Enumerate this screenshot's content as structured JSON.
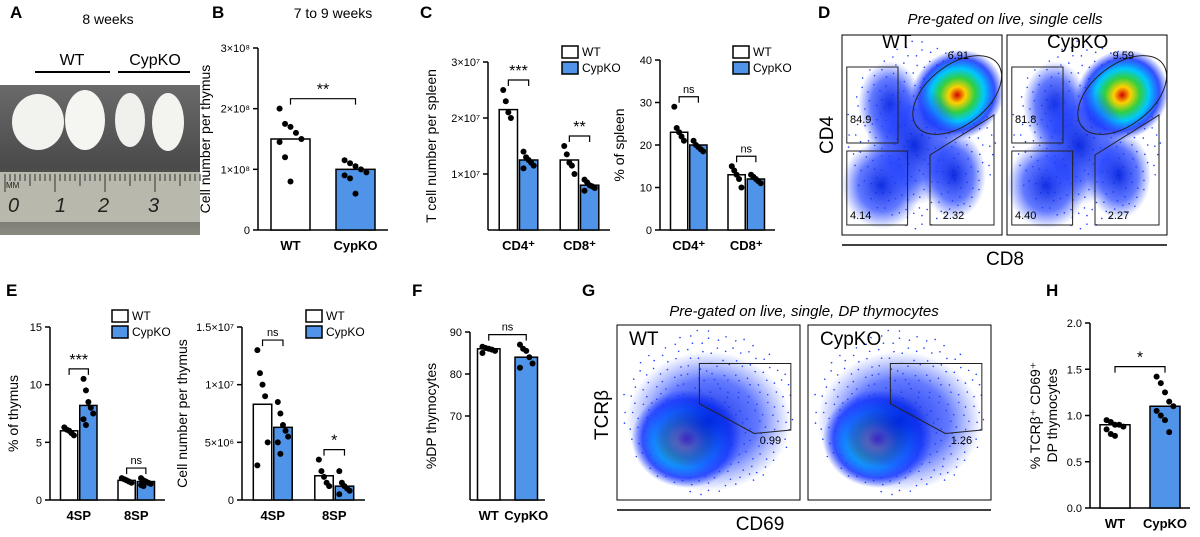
{
  "panel_letters": [
    "A",
    "B",
    "C",
    "D",
    "E",
    "F",
    "G",
    "H"
  ],
  "photo": {
    "title": "8 weeks",
    "groups": [
      "WT",
      "CypKO"
    ],
    "ruler": [
      "MM",
      "0",
      "1",
      "2",
      "3"
    ]
  },
  "flow_d": {
    "title": "Pre-gated on live, single cells",
    "ylabel": "CD4",
    "xlabel": "CD8",
    "plots": [
      {
        "label": "WT",
        "gates": [
          "84.9",
          "6.91",
          "4.14",
          "2.32"
        ]
      },
      {
        "label": "CypKO",
        "gates": [
          "81.8",
          "9.59",
          "4.40",
          "2.27"
        ]
      }
    ]
  },
  "flow_g": {
    "title": "Pre-gated on live, single, DP thymocytes",
    "ylabel": "TCRβ",
    "xlabel": "CD69",
    "plots": [
      {
        "label": "WT",
        "gates": [
          "0.99"
        ]
      },
      {
        "label": "CypKO",
        "gates": [
          "1.26"
        ]
      }
    ]
  },
  "chart_data": [
    {
      "type": "bar",
      "title": "7 to 9 weeks",
      "ylabel": "Cell number per thymus",
      "categories": [
        "WT",
        "CypKO"
      ],
      "values": [
        150000000,
        100000000
      ],
      "colors": [
        "#ffffff",
        "#4f94e8"
      ],
      "points": [
        [
          200000000,
          175000000,
          170000000,
          160000000,
          150000000,
          145000000,
          120000000,
          80000000
        ],
        [
          115000000,
          110000000,
          105000000,
          100000000,
          95000000,
          90000000,
          85000000,
          60000000
        ]
      ],
      "ylim": [
        0,
        300000000
      ],
      "yticks": [
        0,
        {
          "value": 100000000,
          "label": "1×10⁸"
        },
        {
          "value": 200000000,
          "label": "2×10⁸"
        },
        {
          "value": 300000000,
          "label": "3×10⁸"
        }
      ],
      "annotations": [
        "**"
      ]
    },
    {
      "type": "bar",
      "ylabel": "T cell number per spleen",
      "categories": [
        "CD4⁺",
        "CD8⁺"
      ],
      "legend": true,
      "series": [
        {
          "name": "WT",
          "color": "#ffffff",
          "values": [
            21500000,
            12500000
          ],
          "points": [
            [
              25000000,
              23000000,
              21000000,
              20000000
            ],
            [
              15000000,
              13500000,
              12000000,
              11500000,
              10000000
            ]
          ]
        },
        {
          "name": "CypKO",
          "color": "#4f94e8",
          "values": [
            12500000,
            8000000
          ],
          "points": [
            [
              14000000,
              13000000,
              12500000,
              12000000,
              11500000,
              11000000
            ],
            [
              9000000,
              8500000,
              8000000,
              7800000,
              7500000,
              7000000
            ]
          ]
        }
      ],
      "ylim": [
        0,
        30000000
      ],
      "yticks": [
        {
          "value": 10000000,
          "label": "1×10⁷"
        },
        {
          "value": 20000000,
          "label": "2×10⁷"
        },
        {
          "value": 30000000,
          "label": "3×10⁷"
        }
      ],
      "annotations": [
        "***",
        "**"
      ]
    },
    {
      "type": "bar",
      "ylabel": "% of  spleen",
      "categories": [
        "CD4⁺",
        "CD8⁺"
      ],
      "legend": true,
      "series": [
        {
          "name": "WT",
          "color": "#ffffff",
          "values": [
            23,
            13
          ],
          "points": [
            [
              29,
              24,
              23,
              22,
              21
            ],
            [
              15,
              14,
              13,
              12,
              10
            ]
          ]
        },
        {
          "name": "CypKO",
          "color": "#4f94e8",
          "values": [
            20,
            12
          ],
          "points": [
            [
              21,
              20,
              19.5,
              19,
              18.5
            ],
            [
              13,
              12.5,
              12,
              11.5,
              11
            ]
          ]
        }
      ],
      "ylim": [
        0,
        40
      ],
      "yticks": [
        0,
        10,
        20,
        30,
        40
      ],
      "annotations": [
        "ns",
        "ns"
      ]
    },
    {
      "type": "bar",
      "ylabel": "% of thymus",
      "categories": [
        "4SP",
        "8SP"
      ],
      "legend": true,
      "series": [
        {
          "name": "WT",
          "color": "#ffffff",
          "values": [
            6,
            1.7
          ],
          "points": [
            [
              6.3,
              6.1,
              6,
              5.8,
              5.6
            ],
            [
              1.9,
              1.8,
              1.7,
              1.6,
              1.5
            ]
          ]
        },
        {
          "name": "CypKO",
          "color": "#4f94e8",
          "values": [
            8.2,
            1.6
          ],
          "points": [
            [
              10.5,
              9.5,
              8.5,
              8,
              7.5,
              7,
              6.5
            ],
            [
              1.9,
              1.7,
              1.6,
              1.5,
              1.4,
              1.3,
              1.2
            ]
          ]
        }
      ],
      "ylim": [
        0,
        15
      ],
      "yticks": [
        0,
        5,
        10,
        15
      ],
      "annotations": [
        "***",
        "ns"
      ]
    },
    {
      "type": "bar",
      "ylabel": "Cell number per thymus",
      "categories": [
        "4SP",
        "8SP"
      ],
      "legend": true,
      "series": [
        {
          "name": "WT",
          "color": "#ffffff",
          "values": [
            8300000,
            2100000
          ],
          "points": [
            [
              13000000,
              11000000,
              10000000,
              9000000,
              5000000,
              3000000
            ],
            [
              3500000,
              2500000,
              2000000,
              1500000,
              1200000
            ]
          ]
        },
        {
          "name": "CypKO",
          "color": "#4f94e8",
          "values": [
            6300000,
            1200000
          ],
          "points": [
            [
              8500000,
              7500000,
              6500000,
              6000000,
              5500000,
              5000000,
              4000000
            ],
            [
              2500000,
              1500000,
              1200000,
              1000000,
              800000,
              500000
            ]
          ]
        }
      ],
      "ylim": [
        0,
        15000000
      ],
      "yticks": [
        0,
        {
          "value": 5000000,
          "label": "5×10⁶"
        },
        {
          "value": 10000000,
          "label": "1×10⁷"
        },
        {
          "value": 15000000,
          "label": "1.5×10⁷"
        }
      ],
      "annotations": [
        "ns",
        "*"
      ]
    },
    {
      "type": "bar",
      "ylabel": "%DP thymocytes",
      "categories": [
        "WT",
        "CypKO"
      ],
      "values": [
        86,
        84
      ],
      "colors": [
        "#ffffff",
        "#4f94e8"
      ],
      "points": [
        [
          86.5,
          86.2,
          86,
          85.8,
          85.5,
          85
        ],
        [
          87,
          86,
          85.5,
          84,
          82.5,
          81.5
        ]
      ],
      "ylim": [
        50,
        90
      ],
      "yticks": [
        70,
        80,
        90
      ],
      "annotations": [
        "ns"
      ]
    },
    {
      "type": "bar",
      "ylabel": [
        "% TCRβ⁺ CD69⁺",
        "DP thymocytes"
      ],
      "categories": [
        "WT",
        "CypKO"
      ],
      "values": [
        0.9,
        1.1
      ],
      "colors": [
        "#ffffff",
        "#4f94e8"
      ],
      "points": [
        [
          0.95,
          0.93,
          0.9,
          0.9,
          0.88,
          0.85,
          0.8,
          0.78
        ],
        [
          1.42,
          1.35,
          1.25,
          1.15,
          1.1,
          1.05,
          1,
          0.95,
          0.82
        ]
      ],
      "ylim": [
        0,
        2
      ],
      "yticks": [
        {
          "value": 0,
          "label": "0.0"
        },
        {
          "value": 0.5,
          "label": "0.5"
        },
        {
          "value": 1,
          "label": "1.0"
        },
        {
          "value": 1.5,
          "label": "1.5"
        },
        {
          "value": 2,
          "label": "2.0"
        }
      ],
      "annotations": [
        "*"
      ]
    }
  ]
}
